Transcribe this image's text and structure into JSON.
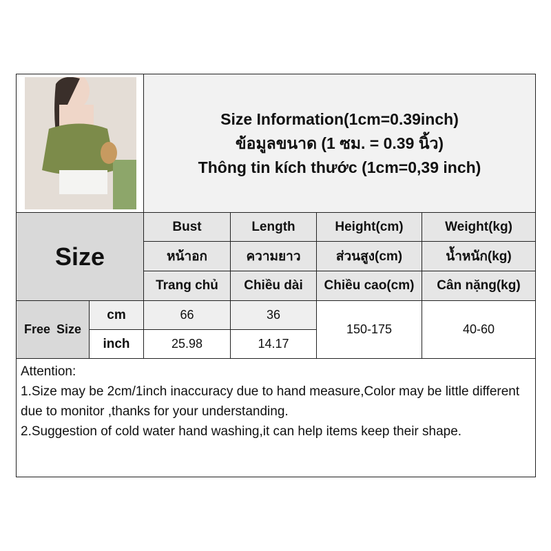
{
  "title": {
    "line1": "Size Information(1cm=0.39inch)",
    "line2": "ข้อมูลขนาด (1 ซม. = 0.39 นิ้ว)",
    "line3": "Thông tin kích thước (1cm=0,39 inch)"
  },
  "size_label": "Size",
  "columns": [
    {
      "en": "Bust",
      "th": "หน้าอก",
      "vi": "Trang chủ"
    },
    {
      "en": "Length",
      "th": "ความยาว",
      "vi": "Chiều dài"
    },
    {
      "en": "Height(cm)",
      "th": "ส่วนสูง(cm)",
      "vi": "Chiều cao(cm)"
    },
    {
      "en": "Weight(kg)",
      "th": "น้ำหนัก(kg)",
      "vi": "Cân nặng(kg)"
    }
  ],
  "row": {
    "name": "Free Size",
    "units": [
      "cm",
      "inch"
    ],
    "bust": [
      "66",
      "25.98"
    ],
    "length": [
      "36",
      "14.17"
    ],
    "height": "150-175",
    "weight": "40-60"
  },
  "attention": {
    "heading": "Attention:",
    "note1": "1.Size may be 2cm/1inch inaccuracy due to hand measure,Color may be little different due to monitor ,thanks for your understanding.",
    "note2": "2.Suggestion of cold water hand washing,it can help items keep their shape."
  }
}
